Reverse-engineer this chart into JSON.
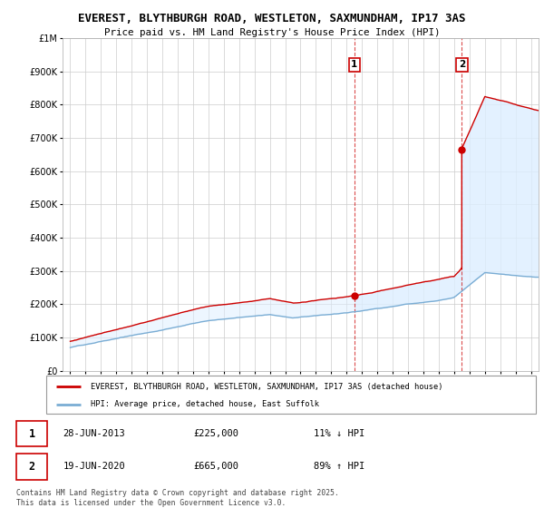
{
  "title": "EVEREST, BLYTHBURGH ROAD, WESTLETON, SAXMUNDHAM, IP17 3AS",
  "subtitle": "Price paid vs. HM Land Registry's House Price Index (HPI)",
  "legend_house": "EVEREST, BLYTHBURGH ROAD, WESTLETON, SAXMUNDHAM, IP17 3AS (detached house)",
  "legend_hpi": "HPI: Average price, detached house, East Suffolk",
  "sale1_date": "28-JUN-2013",
  "sale1_price": 225000,
  "sale1_hpi_pct": "11% ↓ HPI",
  "sale1_year": 2013.5,
  "sale2_date": "19-JUN-2020",
  "sale2_price": 665000,
  "sale2_hpi_pct": "89% ↑ HPI",
  "sale2_year": 2020.5,
  "footer": "Contains HM Land Registry data © Crown copyright and database right 2025.\nThis data is licensed under the Open Government Licence v3.0.",
  "red_color": "#cc0000",
  "blue_color": "#7aadd4",
  "shade_color": "#ddeeff",
  "ylim": [
    0,
    1000000
  ],
  "xlim_start": 1994.5,
  "xlim_end": 2025.5
}
